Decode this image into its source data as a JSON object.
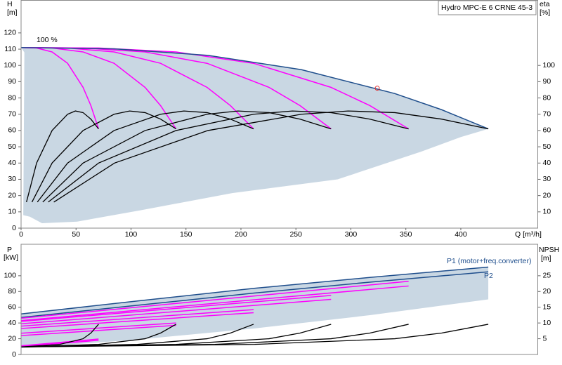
{
  "chart_data": [
    {
      "type": "line",
      "title": "Hydro MPC-E 6 CRNE 45-3",
      "y_label": "H",
      "y_unit": "[m]",
      "y2_label": "eta",
      "y2_unit": "[%]",
      "x_label": "Q [m³/h]",
      "annotation": "100 %",
      "xlim": [
        0,
        470
      ],
      "ylim": [
        0,
        140
      ],
      "y2lim": [
        0,
        140
      ],
      "xticks": [
        0,
        50,
        100,
        150,
        200,
        250,
        300,
        350,
        400
      ],
      "yticks": [
        0,
        10,
        20,
        30,
        40,
        50,
        60,
        70,
        80,
        90,
        100,
        110,
        120
      ],
      "y2ticks": [
        10,
        20,
        30,
        40,
        50,
        60,
        70,
        80,
        90,
        100
      ],
      "grid": false,
      "area": {
        "color": "#c9d7e3",
        "x": [
          0,
          85,
          170,
          255,
          340,
          382.5,
          425,
          400,
          364,
          288,
          192,
          109,
          51,
          19,
          8,
          2,
          3
        ],
        "y": [
          111,
          110.2,
          106.2,
          97.4,
          82.7,
          72.8,
          61,
          56,
          47,
          30,
          21.5,
          11,
          4,
          3,
          7,
          8,
          108
        ]
      },
      "series": [
        {
          "color": "#ff00ff",
          "x": [
            0,
            14.1,
            28.2,
            42.3,
            56.4,
            63.5,
            70.5
          ],
          "values": [
            111,
            110.7,
            108.3,
            101.3,
            86.5,
            75.3,
            61
          ]
        },
        {
          "color": "#ff00ff",
          "x": [
            0,
            28.2,
            56.4,
            84.6,
            112.8,
            126.9,
            141
          ],
          "values": [
            111,
            110.7,
            108.3,
            101.3,
            86.5,
            75.3,
            61
          ]
        },
        {
          "color": "#ff00ff",
          "x": [
            0,
            42.3,
            84.6,
            126.9,
            169.2,
            190.4,
            211.5
          ],
          "values": [
            111,
            110.7,
            108.3,
            101.3,
            86.5,
            75.3,
            61
          ]
        },
        {
          "color": "#ff00ff",
          "x": [
            0,
            56.4,
            112.8,
            169.2,
            225.6,
            253.8,
            282
          ],
          "values": [
            111,
            110.7,
            108.3,
            101.3,
            86.5,
            75.3,
            61
          ]
        },
        {
          "color": "#ff00ff",
          "x": [
            0,
            70.5,
            141,
            211.5,
            282,
            317.3,
            352.5
          ],
          "values": [
            111,
            110.7,
            108.3,
            101.3,
            86.5,
            75.3,
            61
          ]
        },
        {
          "color": "#1f4e8c",
          "x": [
            0,
            85,
            170,
            255,
            340,
            382.5,
            425
          ],
          "values": [
            111,
            110.2,
            106.2,
            97.4,
            82.7,
            72.8,
            61
          ]
        },
        {
          "color": "#000000",
          "axis": "y2",
          "x": [
            4.9,
            14.1,
            28.2,
            42.3,
            49.4,
            56.4,
            63.5,
            70.5
          ],
          "values": [
            16,
            40,
            60,
            70,
            72,
            71,
            67,
            61
          ]
        },
        {
          "color": "#000000",
          "axis": "y2",
          "x": [
            9.9,
            28.2,
            56.4,
            84.6,
            98.7,
            112.8,
            126.9,
            141
          ],
          "values": [
            16,
            40,
            60,
            70,
            72,
            71,
            67,
            61
          ]
        },
        {
          "color": "#000000",
          "axis": "y2",
          "x": [
            14.8,
            42.3,
            84.6,
            126.9,
            148.1,
            169.2,
            190.4,
            211.5
          ],
          "values": [
            16,
            40,
            60,
            70,
            72,
            71,
            67,
            61
          ]
        },
        {
          "color": "#000000",
          "axis": "y2",
          "x": [
            19.7,
            56.4,
            112.8,
            169.2,
            197.4,
            225.6,
            253.8,
            282
          ],
          "values": [
            16,
            40,
            60,
            70,
            72,
            71,
            67,
            61
          ]
        },
        {
          "color": "#000000",
          "axis": "y2",
          "x": [
            24.7,
            70.5,
            141,
            211.5,
            246.8,
            282,
            317.3,
            352.5
          ],
          "values": [
            16,
            40,
            60,
            70,
            72,
            71,
            67,
            61
          ]
        },
        {
          "color": "#000000",
          "axis": "y2",
          "x": [
            29.8,
            85,
            170,
            255,
            297.5,
            340,
            382.5,
            425
          ],
          "values": [
            16,
            40,
            60,
            70,
            72,
            71,
            67,
            61
          ]
        }
      ],
      "duty_point": {
        "x": 324,
        "y": 86,
        "color": "#e03030"
      }
    },
    {
      "type": "line",
      "y_label": "P",
      "y_unit": "[kW]",
      "y2_label": "NPSH",
      "y2_unit": "[m]",
      "annotations": [
        "P1 (motor+freq.converter)",
        "P2"
      ],
      "xlim": [
        0,
        470
      ],
      "ylim": [
        0,
        140
      ],
      "y2lim": [
        0,
        35
      ],
      "yticks": [
        0,
        20,
        40,
        60,
        80,
        100
      ],
      "y2ticks": [
        5,
        10,
        15,
        20,
        25
      ],
      "grid": false,
      "area": {
        "color": "#c9d7e3",
        "x": [
          0,
          106,
          212,
          318,
          425,
          425,
          318,
          212,
          106,
          0
        ],
        "y": [
          51.5,
          68,
          84,
          98,
          111,
          70,
          50,
          33,
          19,
          8
        ]
      },
      "series": [
        {
          "color": "#1f4e8c",
          "x": [
            0,
            106,
            212,
            318,
            425
          ],
          "values": [
            51.5,
            68,
            84,
            98,
            111
          ]
        },
        {
          "color": "#1f4e8c",
          "x": [
            0,
            106,
            212,
            318,
            425
          ],
          "values": [
            47,
            62.5,
            78,
            92,
            105
          ]
        },
        {
          "color": "#ff00ff",
          "x": [
            0,
            70.5
          ],
          "values": [
            11,
            19.6
          ]
        },
        {
          "color": "#ff00ff",
          "x": [
            0,
            70.5
          ],
          "values": [
            10,
            18
          ]
        },
        {
          "color": "#ff00ff",
          "x": [
            0,
            141
          ],
          "values": [
            27,
            40
          ]
        },
        {
          "color": "#ff00ff",
          "x": [
            0,
            141
          ],
          "values": [
            24,
            37
          ]
        },
        {
          "color": "#ff00ff",
          "x": [
            0,
            211.5
          ],
          "values": [
            36,
            57
          ]
        },
        {
          "color": "#ff00ff",
          "x": [
            0,
            211.5
          ],
          "values": [
            33,
            53
          ]
        },
        {
          "color": "#ff00ff",
          "x": [
            0,
            282
          ],
          "values": [
            42,
            75
          ]
        },
        {
          "color": "#ff00ff",
          "x": [
            0,
            282
          ],
          "values": [
            39,
            70
          ]
        },
        {
          "color": "#ff00ff",
          "x": [
            0,
            352.5
          ],
          "values": [
            46,
            93
          ]
        },
        {
          "color": "#ff00ff",
          "x": [
            0,
            352.5
          ],
          "values": [
            43,
            87
          ]
        },
        {
          "color": "#000000",
          "axis": "y2",
          "x": [
            0,
            35.3,
            56.4,
            63.5,
            70.5
          ],
          "values": [
            2.4,
            3.2,
            5,
            6.8,
            9.6
          ]
        },
        {
          "color": "#000000",
          "axis": "y2",
          "x": [
            0,
            70.5,
            112.8,
            126.9,
            141
          ],
          "values": [
            2.4,
            3.2,
            5,
            6.8,
            9.6
          ]
        },
        {
          "color": "#000000",
          "axis": "y2",
          "x": [
            0,
            105.8,
            169.2,
            190.4,
            211.5
          ],
          "values": [
            2.4,
            3.2,
            5,
            6.8,
            9.6
          ]
        },
        {
          "color": "#000000",
          "axis": "y2",
          "x": [
            0,
            141,
            225.6,
            253.8,
            282
          ],
          "values": [
            2.4,
            3.2,
            5,
            6.8,
            9.6
          ]
        },
        {
          "color": "#000000",
          "axis": "y2",
          "x": [
            0,
            176.3,
            282,
            317.3,
            352.5
          ],
          "values": [
            2.4,
            3.2,
            5,
            6.8,
            9.6
          ]
        },
        {
          "color": "#000000",
          "axis": "y2",
          "x": [
            0,
            212.5,
            340,
            382.5,
            425
          ],
          "values": [
            2.4,
            3.2,
            5,
            6.8,
            9.6
          ]
        }
      ]
    }
  ]
}
